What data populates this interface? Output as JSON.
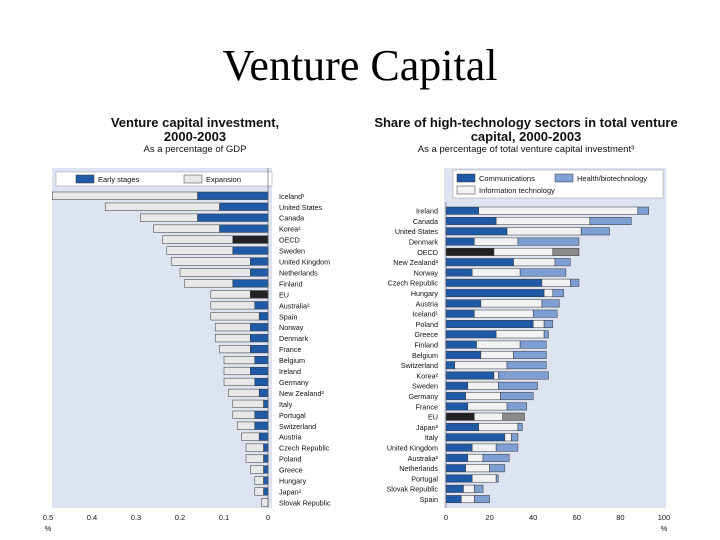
{
  "slide": {
    "title": "Venture Capital"
  },
  "colors": {
    "early": "#1f5aa6",
    "expansion": "#e8e8e8",
    "oecd": "#222222",
    "eu": "#222222",
    "communications": "#1f5aa6",
    "health": "#7d9fd3",
    "it": "#f2f2f2",
    "panel_bg": "#dde3f1"
  },
  "chart_data": [
    {
      "type": "bar",
      "orientation": "horizontal",
      "stacked": true,
      "title": "Venture capital investment, 2000-2003",
      "subtitle": "As a percentage of GDP",
      "xlim": [
        0,
        0.5
      ],
      "xaxis_reversed": true,
      "xticks": [
        "0.5",
        "0.4",
        "0.3",
        "0.2",
        "0.1",
        "0"
      ],
      "xunit": "%",
      "categories": [
        "Iceland¹",
        "United States",
        "Canada",
        "Korea²",
        "OECD",
        "Sweden",
        "United Kingdom",
        "Netherlands",
        "Finland",
        "EU",
        "Australia²",
        "Spain",
        "Norway",
        "Denmark",
        "France",
        "Belgium",
        "Ireland",
        "Germany",
        "New Zealand²",
        "Italy",
        "Portugal",
        "Switzerland",
        "Austria",
        "Czech Republic",
        "Poland",
        "Greece",
        "Hungary",
        "Japan²",
        "Slovak Republic"
      ],
      "series": [
        {
          "name": "Early stages",
          "values": [
            0.16,
            0.11,
            0.16,
            0.11,
            0.08,
            0.08,
            0.04,
            0.04,
            0.08,
            0.04,
            0.03,
            0.02,
            0.04,
            0.04,
            0.04,
            0.03,
            0.04,
            0.03,
            0.02,
            0.01,
            0.03,
            0.03,
            0.02,
            0.01,
            0.01,
            0.01,
            0.01,
            0.01,
            0.0
          ]
        },
        {
          "name": "Expansion",
          "values": [
            0.33,
            0.26,
            0.13,
            0.15,
            0.16,
            0.15,
            0.18,
            0.16,
            0.11,
            0.09,
            0.1,
            0.11,
            0.08,
            0.08,
            0.07,
            0.07,
            0.06,
            0.07,
            0.07,
            0.07,
            0.05,
            0.04,
            0.04,
            0.04,
            0.04,
            0.03,
            0.02,
            0.02,
            0.015
          ]
        }
      ]
    },
    {
      "type": "bar",
      "orientation": "horizontal",
      "stacked": true,
      "title": "Share of high-technology sectors in total venture capital, 2000-2003",
      "subtitle": "As a percentage of total venture capital investment³",
      "xlim": [
        0,
        100
      ],
      "xticks": [
        "0",
        "20",
        "40",
        "60",
        "80",
        "100"
      ],
      "xunit": "%",
      "categories": [
        "Ireland",
        "Canada",
        "United States",
        "Denmark",
        "OECD",
        "New Zealand²",
        "Norway",
        "Czech Republic",
        "Hungary",
        "Austria",
        "Iceland¹",
        "Poland",
        "Greece",
        "Finland",
        "Belgium",
        "Switzerland",
        "Korea²",
        "Sweden",
        "Germany",
        "France",
        "EU",
        "Japan²",
        "Italy",
        "United Kingdom",
        "Australia²",
        "Netherlands",
        "Portugal",
        "Slovak Republic",
        "Spain"
      ],
      "series": [
        {
          "name": "Communications",
          "values": [
            15,
            23,
            28,
            13,
            22,
            31,
            12,
            44,
            45,
            16,
            13,
            40,
            23,
            14,
            16,
            4,
            22,
            10,
            9,
            10,
            13,
            15,
            27,
            12,
            10,
            9,
            12,
            8,
            7
          ]
        },
        {
          "name": "Information technology",
          "values": [
            73,
            43,
            34,
            20,
            27,
            19,
            22,
            13,
            4,
            28,
            27,
            5,
            22,
            20,
            15,
            24,
            2,
            14,
            16,
            18,
            13,
            18,
            3,
            11,
            7,
            11,
            11,
            5,
            6
          ]
        },
        {
          "name": "Health/biotechnology",
          "values": [
            5,
            19,
            13,
            28,
            12,
            7,
            21,
            4,
            5,
            8,
            11,
            4,
            2,
            12,
            15,
            18,
            23,
            18,
            15,
            9,
            10,
            2,
            3,
            10,
            12,
            7,
            1,
            4,
            7
          ]
        }
      ]
    }
  ]
}
